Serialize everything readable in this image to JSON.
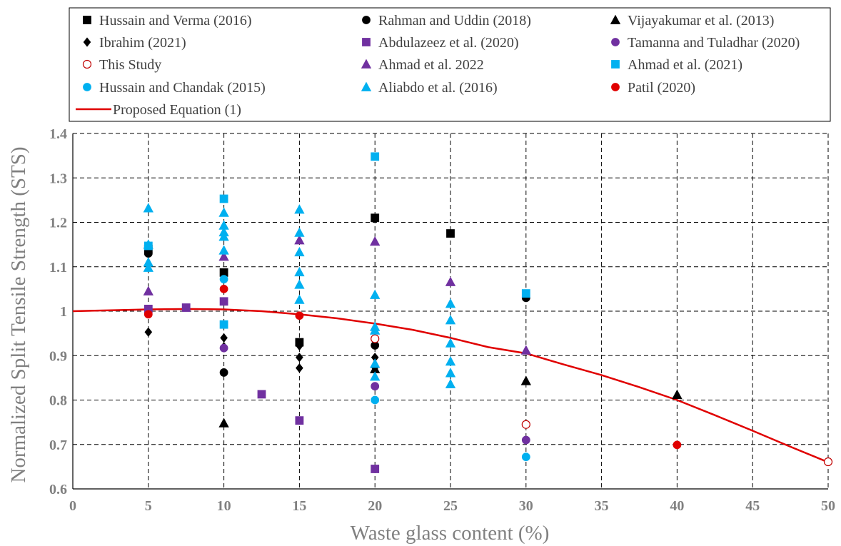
{
  "chart_data": {
    "type": "scatter",
    "xlabel": "Waste glass content (%)",
    "ylabel": "Normalized Split Tensile Strength (STS)",
    "xlim": [
      0,
      50
    ],
    "ylim": [
      0.6,
      1.4
    ],
    "xticks": [
      0,
      5,
      10,
      15,
      20,
      25,
      30,
      35,
      40,
      45,
      50
    ],
    "yticks": [
      0.6,
      0.7,
      0.8,
      0.9,
      1,
      1.1,
      1.2,
      1.3,
      1.4
    ],
    "grid": "dashed",
    "legend_position": "top",
    "series": [
      {
        "name": "Hussain and Verma (2016)",
        "marker": "square",
        "color": "#000000",
        "filled": true,
        "points": [
          [
            5,
            1.14
          ],
          [
            10,
            1.087
          ],
          [
            15,
            0.93
          ],
          [
            20,
            1.21
          ],
          [
            25,
            1.175
          ]
        ]
      },
      {
        "name": "Rahman and Uddin (2018)",
        "marker": "circle",
        "color": "#000000",
        "filled": true,
        "points": [
          [
            5,
            1.13
          ],
          [
            10,
            0.862
          ],
          [
            20,
            0.923
          ],
          [
            30,
            1.03
          ]
        ]
      },
      {
        "name": "Vijayakumar et al. (2013)",
        "marker": "triangle",
        "color": "#000000",
        "filled": true,
        "points": [
          [
            10,
            0.748
          ],
          [
            20,
            0.87
          ],
          [
            30,
            0.843
          ],
          [
            40,
            0.812
          ]
        ]
      },
      {
        "name": "Ibrahim (2021)",
        "marker": "diamond",
        "color": "#000000",
        "filled": true,
        "points": [
          [
            5,
            0.953
          ],
          [
            10,
            0.94
          ],
          [
            10,
            0.92
          ],
          [
            15,
            0.922
          ],
          [
            15,
            0.896
          ],
          [
            15,
            0.872
          ],
          [
            20,
            0.896
          ],
          [
            20,
            0.873
          ]
        ]
      },
      {
        "name": "Abdulazeez et al. (2020)",
        "marker": "square",
        "color": "#7030a0",
        "filled": true,
        "points": [
          [
            5,
            1.005
          ],
          [
            7.5,
            1.008
          ],
          [
            10,
            1.022
          ],
          [
            12.5,
            0.813
          ],
          [
            15,
            0.754
          ],
          [
            20,
            0.645
          ]
        ]
      },
      {
        "name": "Tamanna and Tuladhar (2020)",
        "marker": "circle",
        "color": "#7030a0",
        "filled": true,
        "points": [
          [
            10,
            0.917
          ],
          [
            20,
            0.831
          ],
          [
            30,
            0.71
          ]
        ]
      },
      {
        "name": "This Study",
        "marker": "circle",
        "color": "#c00000",
        "filled": false,
        "points": [
          [
            20,
            0.938
          ],
          [
            30,
            0.745
          ],
          [
            50,
            0.661
          ]
        ]
      },
      {
        "name": "Ahmad et al. 2022",
        "marker": "triangle",
        "color": "#7030a0",
        "filled": true,
        "points": [
          [
            5,
            1.045
          ],
          [
            10,
            1.123
          ],
          [
            15,
            1.16
          ],
          [
            20,
            1.157
          ],
          [
            25,
            1.066
          ],
          [
            30,
            0.912
          ]
        ]
      },
      {
        "name": "Ahmad et al. (2021)",
        "marker": "square",
        "color": "#00b0f0",
        "filled": true,
        "points": [
          [
            5,
            1.147
          ],
          [
            10,
            1.253
          ],
          [
            10,
            0.97
          ],
          [
            20,
            1.348
          ],
          [
            30,
            1.04
          ]
        ]
      },
      {
        "name": "Hussain and Chandak (2015)",
        "marker": "circle",
        "color": "#00b0f0",
        "filled": true,
        "points": [
          [
            10,
            1.072
          ],
          [
            20,
            0.8
          ],
          [
            30,
            0.672
          ]
        ]
      },
      {
        "name": "Aliabdo et al. (2016)",
        "marker": "triangle",
        "color": "#00b0f0",
        "filled": true,
        "points": [
          [
            5,
            1.232
          ],
          [
            5,
            1.15
          ],
          [
            5,
            1.11
          ],
          [
            5,
            1.098
          ],
          [
            10,
            1.222
          ],
          [
            10,
            1.193
          ],
          [
            10,
            1.178
          ],
          [
            10,
            1.168
          ],
          [
            10,
            1.137
          ],
          [
            15,
            1.229
          ],
          [
            15,
            1.177
          ],
          [
            15,
            1.133
          ],
          [
            15,
            1.088
          ],
          [
            15,
            1.06
          ],
          [
            15,
            1.026
          ],
          [
            20,
            1.037
          ],
          [
            20,
            0.965
          ],
          [
            20,
            0.957
          ],
          [
            20,
            0.882
          ],
          [
            20,
            0.853
          ],
          [
            25,
            1.017
          ],
          [
            25,
            0.98
          ],
          [
            25,
            0.928
          ],
          [
            25,
            0.887
          ],
          [
            25,
            0.861
          ],
          [
            25,
            0.836
          ]
        ]
      },
      {
        "name": "Patil (2020)",
        "marker": "circle",
        "color": "#e00000",
        "filled": true,
        "points": [
          [
            5,
            0.993
          ],
          [
            10,
            1.05
          ],
          [
            15,
            0.99
          ],
          [
            40,
            0.699
          ]
        ]
      }
    ],
    "line_series": [
      {
        "name": "Proposed Equation (1)",
        "color": "#e00000",
        "points": [
          [
            0,
            1.0
          ],
          [
            2.5,
            1.002
          ],
          [
            5,
            1.004
          ],
          [
            7.5,
            1.005
          ],
          [
            10,
            1.004
          ],
          [
            12.5,
            1.0
          ],
          [
            15,
            0.993
          ],
          [
            17.5,
            0.984
          ],
          [
            20,
            0.972
          ],
          [
            22.5,
            0.958
          ],
          [
            25,
            0.94
          ],
          [
            27.5,
            0.919
          ],
          [
            30,
            0.905
          ],
          [
            32.5,
            0.88
          ],
          [
            35,
            0.856
          ],
          [
            37.5,
            0.829
          ],
          [
            40,
            0.8
          ],
          [
            42.5,
            0.766
          ],
          [
            45,
            0.731
          ],
          [
            47.5,
            0.695
          ],
          [
            50,
            0.66
          ]
        ]
      }
    ]
  }
}
